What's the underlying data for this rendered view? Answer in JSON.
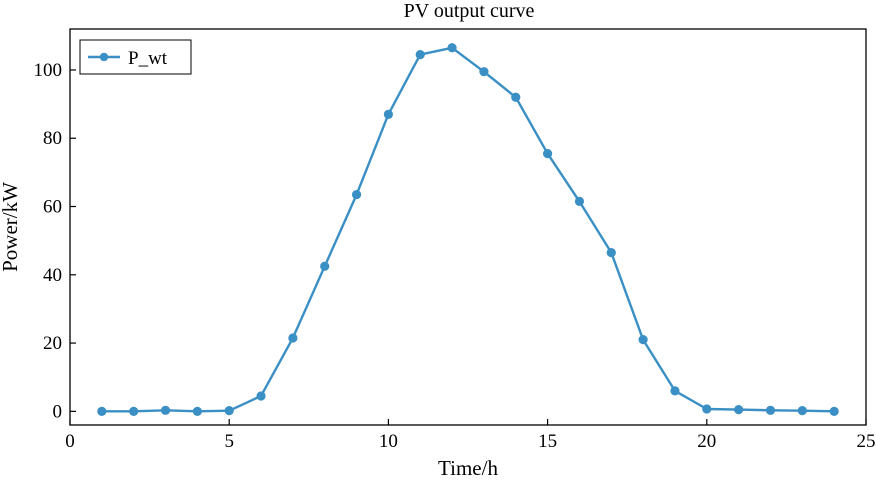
{
  "chart_data": {
    "type": "line",
    "title": "PV output curve",
    "xlabel": "Time/h",
    "ylabel": "Power/kW",
    "xlim": [
      0,
      25
    ],
    "ylim": [
      -4,
      112
    ],
    "xticks": [
      0,
      5,
      10,
      15,
      20,
      25
    ],
    "yticks": [
      0,
      20,
      40,
      60,
      80,
      100
    ],
    "grid": false,
    "legend_position": "top-left",
    "series": [
      {
        "name": "P_wt",
        "color": "#3a8fc4",
        "marker": "circle",
        "x": [
          1,
          2,
          3,
          4,
          5,
          6,
          7,
          8,
          9,
          10,
          11,
          12,
          13,
          14,
          15,
          16,
          17,
          18,
          19,
          20,
          21,
          22,
          23,
          24
        ],
        "y": [
          0,
          0,
          0.3,
          0,
          0.2,
          4.5,
          21.5,
          42.5,
          63.5,
          87,
          104.5,
          106.5,
          99.5,
          92,
          75.5,
          61.5,
          46.5,
          21,
          6,
          0.7,
          0.5,
          0.3,
          0.2,
          0
        ]
      }
    ]
  }
}
